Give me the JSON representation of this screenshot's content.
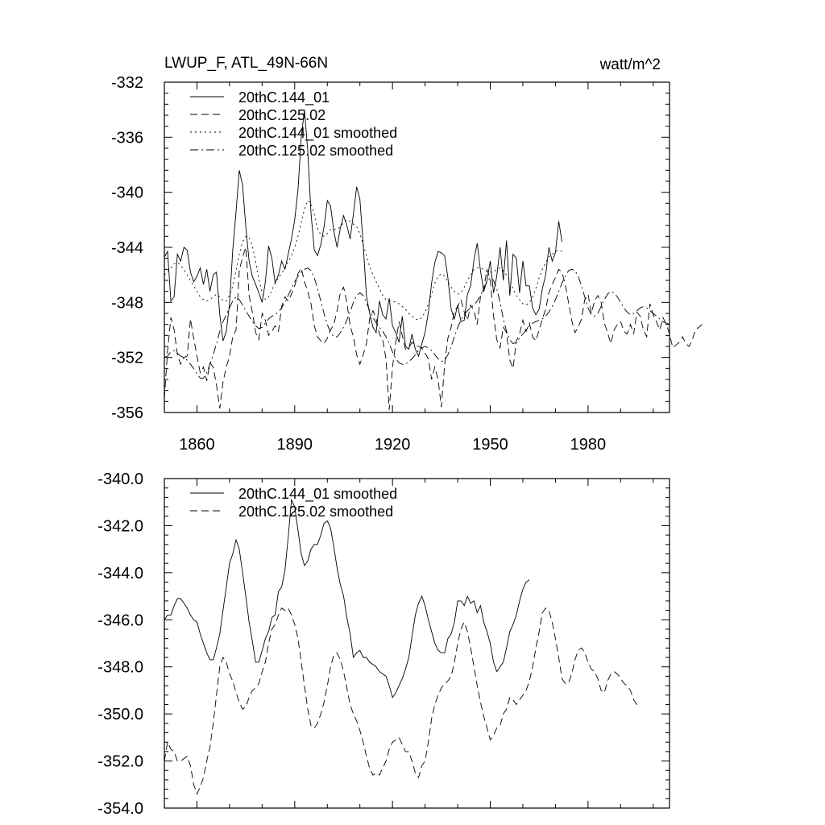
{
  "header": {
    "left_title": "LWUP_F, ATL_49N-66N",
    "right_title": "watt/m^2"
  },
  "colors": {
    "line": "#000000",
    "background": "#ffffff"
  },
  "chart_data": [
    {
      "type": "line",
      "title": "LWUP_F, ATL_49N-66N",
      "units": "watt/m^2",
      "xlim": [
        1850,
        2005
      ],
      "ylim": [
        -356,
        -332
      ],
      "x_ticks": [
        1860,
        1890,
        1920,
        1950,
        1980
      ],
      "y_ticks": [
        -356,
        -352,
        -348,
        -344,
        -340,
        -336,
        -332
      ],
      "y_tick_labels": [
        "-356",
        "-352",
        "-348",
        "-344",
        "-340",
        "-336",
        "-332"
      ],
      "legend_position": "top-left",
      "series": [
        {
          "name": "20thC.144_01",
          "style": "solid",
          "x_start": 1850,
          "values": [
            -344.7,
            -344.3,
            -347.9,
            -347.6,
            -344.5,
            -345.0,
            -344.0,
            -344.2,
            -345.8,
            -346.5,
            -346.1,
            -345.5,
            -346.7,
            -345.6,
            -347.2,
            -346.0,
            -345.8,
            -348.9,
            -350.8,
            -350.1,
            -348.1,
            -344.2,
            -341.4,
            -338.4,
            -339.5,
            -342.5,
            -345.0,
            -346.1,
            -346.7,
            -347.3,
            -348.0,
            -346.5,
            -343.9,
            -344.8,
            -346.6,
            -346.0,
            -345.0,
            -345.6,
            -344.5,
            -343.4,
            -342.0,
            -339.8,
            -336.0,
            -334.0,
            -337.0,
            -341.5,
            -344.2,
            -344.6,
            -343.8,
            -342.5,
            -340.6,
            -341.0,
            -342.8,
            -344.0,
            -342.6,
            -341.7,
            -342.4,
            -343.4,
            -341.6,
            -339.6,
            -340.5,
            -343.8,
            -347.5,
            -348.8,
            -349.8,
            -350.2,
            -347.9,
            -348.9,
            -349.2,
            -347.7,
            -349.7,
            -350.2,
            -350.9,
            -349.0,
            -351.2,
            -351.4,
            -350.3,
            -351.4,
            -351.9,
            -351.0,
            -350.2,
            -348.7,
            -346.6,
            -345.1,
            -344.3,
            -344.4,
            -344.6,
            -346.2,
            -348.5,
            -349.2,
            -348.2,
            -349.4,
            -349.3,
            -347.4,
            -346.8,
            -344.9,
            -343.7,
            -345.7,
            -347.2,
            -346.4,
            -345.0,
            -347.3,
            -346.1,
            -344.0,
            -346.4,
            -343.5,
            -347.5,
            -344.5,
            -344.8,
            -347.3,
            -345.0,
            -346.8,
            -346.8,
            -348.4,
            -348.9,
            -348.5,
            -347.0,
            -346.0,
            -344.0,
            -345.0,
            -344.4,
            -342.1,
            -343.6
          ]
        },
        {
          "name": "20thC.125.02",
          "style": "dashed",
          "x_start": 1850,
          "values": [
            -355.0,
            -351.5,
            -349.1,
            -350.0,
            -351.8,
            -352.5,
            -352.0,
            -351.9,
            -349.2,
            -350.6,
            -351.9,
            -353.1,
            -352.7,
            -353.7,
            -352.4,
            -352.7,
            -354.0,
            -355.7,
            -353.8,
            -352.7,
            -351.9,
            -350.5,
            -350.0,
            -345.7,
            -344.7,
            -344.0,
            -347.5,
            -348.7,
            -350.2,
            -350.7,
            -348.8,
            -349.3,
            -350.4,
            -350.1,
            -349.7,
            -350.1,
            -348.3,
            -347.6,
            -347.9,
            -347.4,
            -346.8,
            -345.9,
            -345.5,
            -346.5,
            -347.2,
            -348.1,
            -349.7,
            -350.5,
            -350.8,
            -351.0,
            -350.6,
            -350.0,
            -349.6,
            -348.6,
            -347.3,
            -346.9,
            -348.0,
            -349.7,
            -350.5,
            -351.8,
            -352.5,
            -351.8,
            -351.0,
            -349.2,
            -348.6,
            -349.2,
            -350.3,
            -350.7,
            -352.1,
            -355.8,
            -352.7,
            -350.9,
            -349.4,
            -350.4,
            -351.4,
            -351.3,
            -350.9,
            -351.1,
            -351.2,
            -351.3,
            -351.7,
            -352.1,
            -353.6,
            -352.7,
            -353.6,
            -355.6,
            -352.5,
            -350.6,
            -349.8,
            -348.6,
            -348.3,
            -347.8,
            -348.7,
            -349.3,
            -348.2,
            -348.6,
            -349.6,
            -347.6,
            -347.0,
            -345.6,
            -346.3,
            -349.0,
            -350.7,
            -351.3,
            -349.8,
            -350.2,
            -352.2,
            -352.8,
            -350.8,
            -350.3,
            -349.3,
            -350.1,
            -349.5,
            -350.5,
            -350.8,
            -350.0,
            -349.2,
            -348.5,
            -347.3,
            -346.7,
            -346.2,
            -345.6,
            -345.8,
            -346.7,
            -348.0,
            -349.3,
            -350.2,
            -349.8,
            -349.2,
            -347.8,
            -347.4,
            -348.8,
            -347.9,
            -347.5,
            -348.0,
            -349.5,
            -350.2,
            -351.0,
            -350.0,
            -349.6,
            -349.4,
            -350.1,
            -350.3,
            -349.6,
            -350.3,
            -348.7,
            -349.0,
            -350.0,
            -350.5,
            -348.1,
            -348.9,
            -349.4,
            -350.0,
            -349.1,
            -349.6,
            -350.3,
            -351.3,
            -351.1,
            -350.9,
            -350.5,
            -351.0,
            -351.2,
            -350.7,
            -350.0,
            -349.8,
            -349.6
          ]
        },
        {
          "name": "20thC.144_01 smoothed",
          "style": "dotted",
          "x_start": 1850,
          "values": [
            -346.0,
            -345.8,
            -345.5,
            -345.2,
            -345.1,
            -345.3,
            -345.6,
            -346.0,
            -346.4,
            -346.8,
            -347.2,
            -347.6,
            -347.8,
            -347.9,
            -347.8,
            -347.6,
            -347.4,
            -347.6,
            -347.9,
            -347.9,
            -347.5,
            -346.8,
            -345.7,
            -344.5,
            -343.6,
            -343.2,
            -343.3,
            -343.9,
            -345.0,
            -346.3,
            -347.3,
            -347.8,
            -347.6,
            -347.1,
            -346.6,
            -346.2,
            -345.9,
            -345.5,
            -345.0,
            -344.6,
            -344.0,
            -343.2,
            -342.2,
            -341.2,
            -340.6,
            -340.8,
            -341.6,
            -342.6,
            -343.1,
            -343.2,
            -343.0,
            -342.7,
            -342.7,
            -342.7,
            -342.5,
            -342.2,
            -342.0,
            -342.1,
            -342.3,
            -342.5,
            -343.0,
            -343.8,
            -344.6,
            -345.4,
            -346.0,
            -346.5,
            -347.0,
            -347.5,
            -347.8,
            -347.9,
            -347.9,
            -348.0,
            -348.1,
            -348.3,
            -348.5,
            -348.8,
            -349.0,
            -349.2,
            -349.3,
            -349.1,
            -348.7,
            -348.1,
            -347.4,
            -346.6,
            -346.1,
            -345.9,
            -346.1,
            -346.5,
            -346.9,
            -347.2,
            -347.4,
            -347.3,
            -346.9,
            -346.4,
            -346.0,
            -345.6,
            -345.5,
            -345.5,
            -345.6,
            -345.8,
            -345.8,
            -345.8,
            -345.6,
            -345.5,
            -345.7,
            -346.0,
            -346.4,
            -347.0,
            -347.5,
            -347.8,
            -348.1,
            -348.2,
            -348.0,
            -347.6,
            -347.0,
            -346.2,
            -345.6,
            -345.1,
            -344.7,
            -344.5,
            -344.3,
            -344.2,
            -344.3
          ]
        },
        {
          "name": "20thC.125.02 smoothed",
          "style": "dashdot",
          "x_start": 1850,
          "values": [
            -352.0,
            -351.9,
            -351.6,
            -351.5,
            -351.7,
            -351.9,
            -352.0,
            -352.2,
            -352.5,
            -352.8,
            -353.2,
            -353.5,
            -353.5,
            -353.1,
            -352.5,
            -351.8,
            -351.0,
            -350.1,
            -349.4,
            -348.9,
            -348.4,
            -347.9,
            -347.6,
            -347.8,
            -348.2,
            -348.6,
            -349.0,
            -349.4,
            -349.7,
            -349.9,
            -349.8,
            -349.5,
            -349.2,
            -349.0,
            -348.9,
            -348.7,
            -348.4,
            -348.0,
            -347.5,
            -347.0,
            -346.5,
            -346.1,
            -345.8,
            -345.6,
            -345.5,
            -345.7,
            -346.2,
            -347.0,
            -347.9,
            -348.8,
            -349.6,
            -350.2,
            -350.5,
            -350.5,
            -350.2,
            -349.8,
            -349.3,
            -348.7,
            -348.0,
            -347.5,
            -347.3,
            -347.5,
            -348.0,
            -348.6,
            -349.1,
            -349.5,
            -349.8,
            -350.1,
            -350.5,
            -351.0,
            -351.6,
            -352.1,
            -352.4,
            -352.5,
            -352.5,
            -352.3,
            -352.1,
            -351.8,
            -351.5,
            -351.3,
            -351.2,
            -351.3,
            -351.5,
            -351.8,
            -352.1,
            -352.3,
            -352.2,
            -351.8,
            -351.2,
            -350.5,
            -349.8,
            -349.3,
            -348.9,
            -348.6,
            -348.4,
            -348.2,
            -347.9,
            -347.5,
            -347.0,
            -346.5,
            -346.2,
            -346.4,
            -347.0,
            -348.0,
            -349.2,
            -350.1,
            -350.7,
            -351.0,
            -350.9,
            -350.6,
            -350.3,
            -350.0,
            -349.7,
            -349.5,
            -349.4,
            -349.3,
            -349.2,
            -349.0,
            -348.7,
            -348.3,
            -347.8,
            -347.2,
            -346.6,
            -346.1,
            -345.7,
            -345.6,
            -345.7,
            -346.1,
            -346.8,
            -347.6,
            -348.4,
            -348.9,
            -349.0,
            -348.8,
            -348.3,
            -347.8,
            -347.4,
            -347.2,
            -347.3,
            -347.6,
            -348.0,
            -348.4,
            -348.7,
            -348.9,
            -348.8,
            -348.6,
            -348.4,
            -348.3,
            -348.4,
            -348.6,
            -348.8,
            -349.0,
            -349.2,
            -349.4,
            -349.5,
            -349.6
          ]
        }
      ]
    },
    {
      "type": "line",
      "title": "",
      "xlim": [
        1850,
        2005
      ],
      "ylim": [
        -354.0,
        -340.0
      ],
      "x_ticks": [
        1860,
        1890,
        1920,
        1950,
        1980
      ],
      "y_ticks": [
        -354.0,
        -352.0,
        -350.0,
        -348.0,
        -346.0,
        -344.0,
        -342.0,
        -340.0
      ],
      "y_tick_labels": [
        "-354.0",
        "-352.0",
        "-350.0",
        "-348.0",
        "-346.0",
        "-344.0",
        "-342.0",
        "-340.0"
      ],
      "legend_position": "top-left",
      "series": [
        {
          "name": "20thC.144_01 smoothed",
          "style": "solid",
          "x_start": 1850,
          "values": [
            -346.0,
            -345.8,
            -345.8,
            -345.4,
            -345.1,
            -345.1,
            -345.3,
            -345.5,
            -345.8,
            -346.0,
            -346.1,
            -346.6,
            -347.0,
            -347.4,
            -347.7,
            -347.7,
            -347.2,
            -346.6,
            -345.6,
            -344.6,
            -343.6,
            -343.2,
            -342.6,
            -343.0,
            -344.0,
            -345.0,
            -346.1,
            -346.9,
            -347.8,
            -347.8,
            -347.3,
            -346.8,
            -346.5,
            -345.9,
            -345.8,
            -344.8,
            -344.6,
            -343.9,
            -342.5,
            -340.9,
            -341.2,
            -342.2,
            -343.2,
            -343.7,
            -343.5,
            -343.0,
            -342.8,
            -342.8,
            -342.4,
            -341.9,
            -341.8,
            -342.1,
            -342.9,
            -343.8,
            -344.5,
            -345.0,
            -345.9,
            -346.6,
            -347.6,
            -347.4,
            -347.3,
            -347.6,
            -347.6,
            -347.8,
            -347.9,
            -348.0,
            -348.2,
            -348.3,
            -348.4,
            -348.8,
            -349.3,
            -349.1,
            -348.8,
            -348.5,
            -348.1,
            -347.6,
            -346.7,
            -345.8,
            -345.3,
            -345.0,
            -345.4,
            -346.0,
            -346.5,
            -347.0,
            -347.3,
            -347.4,
            -347.4,
            -346.8,
            -346.6,
            -346.1,
            -345.2,
            -345.2,
            -345.4,
            -345.0,
            -345.3,
            -345.2,
            -345.7,
            -345.4,
            -346.1,
            -346.5,
            -347.0,
            -347.8,
            -348.2,
            -348.0,
            -347.8,
            -347.2,
            -346.5,
            -346.2,
            -345.8,
            -345.2,
            -344.7,
            -344.4,
            -344.3
          ]
        },
        {
          "name": "20thC.125.02 smoothed",
          "style": "dashed",
          "x_start": 1850,
          "values": [
            -352.0,
            -351.2,
            -351.5,
            -351.6,
            -352.0,
            -352.0,
            -351.9,
            -351.8,
            -352.2,
            -353.0,
            -353.4,
            -353.1,
            -352.7,
            -352.0,
            -351.4,
            -350.4,
            -349.2,
            -348.0,
            -347.6,
            -347.8,
            -348.3,
            -348.6,
            -349.1,
            -349.5,
            -349.8,
            -349.7,
            -349.3,
            -349.0,
            -348.9,
            -348.7,
            -348.2,
            -347.8,
            -347.0,
            -346.4,
            -346.2,
            -345.8,
            -345.5,
            -345.6,
            -345.5,
            -345.8,
            -346.2,
            -346.8,
            -347.8,
            -348.8,
            -349.8,
            -350.5,
            -350.6,
            -350.4,
            -350.0,
            -349.5,
            -348.8,
            -348.0,
            -347.5,
            -347.4,
            -347.7,
            -348.2,
            -348.9,
            -349.6,
            -350.0,
            -350.3,
            -350.7,
            -351.2,
            -351.8,
            -352.3,
            -352.6,
            -352.5,
            -352.6,
            -352.3,
            -352.0,
            -351.5,
            -351.2,
            -351.1,
            -351.0,
            -351.3,
            -351.6,
            -351.6,
            -352.0,
            -352.5,
            -352.7,
            -352.2,
            -352.0,
            -351.2,
            -350.2,
            -349.6,
            -349.2,
            -348.9,
            -348.7,
            -348.6,
            -348.4,
            -347.8,
            -347.0,
            -346.4,
            -346.1,
            -346.5,
            -347.2,
            -348.0,
            -348.8,
            -349.5,
            -350.1,
            -350.6,
            -351.1,
            -350.9,
            -350.6,
            -350.5,
            -350.0,
            -349.8,
            -349.3,
            -349.4,
            -349.6,
            -349.4,
            -349.2,
            -349.0,
            -348.6,
            -348.0,
            -347.2,
            -346.5,
            -345.7,
            -345.5,
            -345.6,
            -346.1,
            -346.8,
            -347.6,
            -348.5,
            -348.7,
            -348.7,
            -348.3,
            -347.7,
            -347.3,
            -347.2,
            -347.4,
            -347.8,
            -348.1,
            -348.2,
            -348.5,
            -349.0,
            -349.1,
            -348.6,
            -348.3,
            -348.2,
            -348.3,
            -348.5,
            -348.7,
            -348.8,
            -349.0,
            -349.4,
            -349.6,
            -349.7
          ]
        }
      ]
    }
  ]
}
